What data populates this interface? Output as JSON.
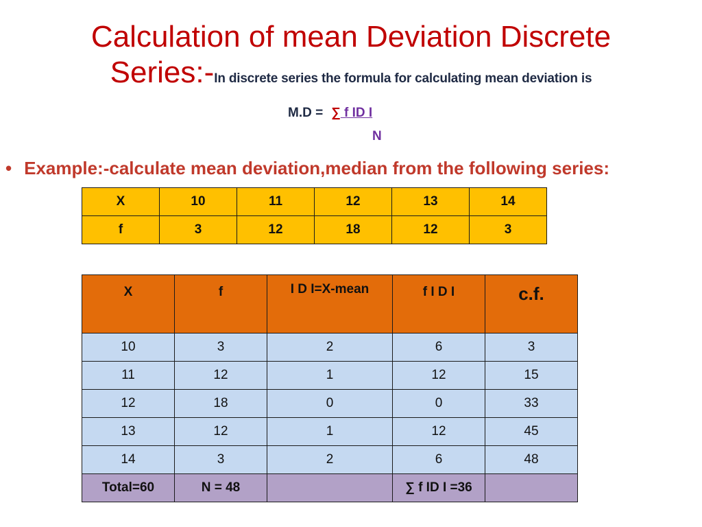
{
  "title": {
    "line1": "Calculation of mean Deviation Discrete",
    "line2": "Series:-",
    "subtitle": "In discrete series the formula for calculating mean deviation is"
  },
  "formula": {
    "lhs": "M.D =",
    "numerator_sigma": "∑",
    "numerator_rest": " f ID I",
    "denominator": "N"
  },
  "example": {
    "bullet": "•",
    "text": "Example:-calculate mean deviation,median from the following series:"
  },
  "series_table": {
    "rows": [
      [
        "X",
        "10",
        "11",
        "12",
        "13",
        "14"
      ],
      [
        "f",
        "3",
        "12",
        "18",
        "12",
        "3"
      ]
    ]
  },
  "calc_table": {
    "headers": [
      "X",
      "f",
      "I D I=X-mean",
      "f I D I",
      "c.f."
    ],
    "rows": [
      [
        "10",
        "3",
        "2",
        "6",
        "3"
      ],
      [
        "11",
        "12",
        "1",
        "12",
        "15"
      ],
      [
        "12",
        "18",
        "0",
        "0",
        "33"
      ],
      [
        "13",
        "12",
        "1",
        "12",
        "45"
      ],
      [
        "14",
        "3",
        "2",
        "6",
        "48"
      ]
    ],
    "total": [
      "Total=60",
      "N = 48",
      "",
      "∑ f ID I =36",
      ""
    ]
  }
}
